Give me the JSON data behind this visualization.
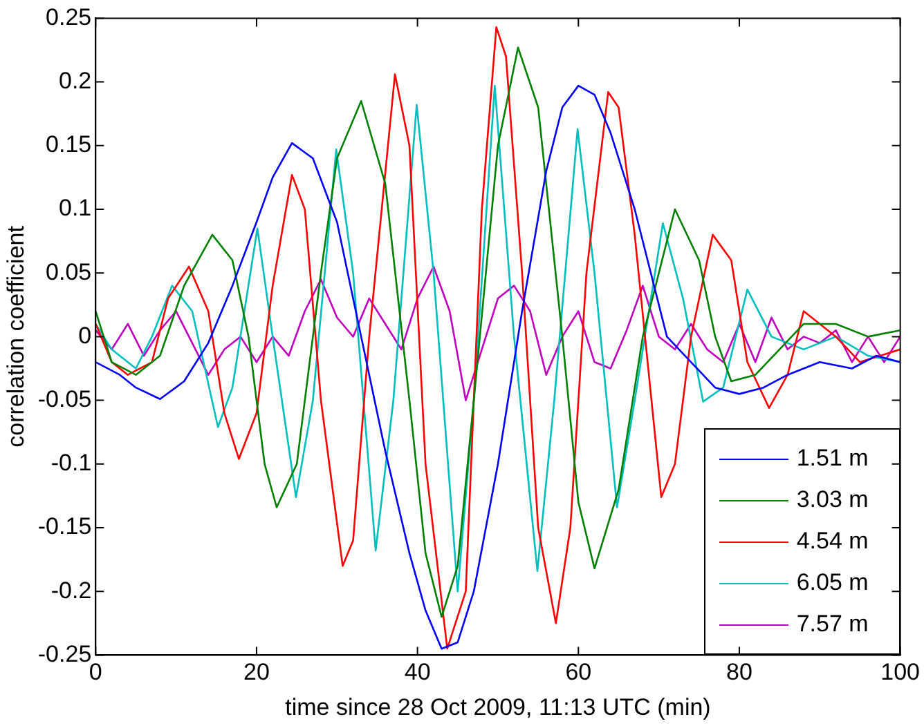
{
  "chart_data": {
    "type": "line",
    "xlabel": "time since 28 Oct 2009, 11:13 UTC (min)",
    "ylabel": "correlation coefficient",
    "xlim": [
      0,
      100
    ],
    "xticks": [
      0,
      20,
      40,
      60,
      80,
      100
    ],
    "ylim": [
      -0.25,
      0.25
    ],
    "yticks": [
      -0.25,
      -0.2,
      -0.15,
      -0.1,
      -0.05,
      0,
      0.05,
      0.1,
      0.15,
      0.2,
      0.25
    ],
    "grid": false,
    "legend": "bottom right",
    "marker": "none",
    "line_style": "solid",
    "series": [
      {
        "name": "1.51 m",
        "color": "#0000ff",
        "x": [
          0,
          3,
          5,
          8,
          11,
          14,
          17,
          20,
          22,
          24.4,
          27,
          30,
          33,
          36,
          39,
          41,
          43,
          45,
          47,
          50,
          53,
          56,
          58,
          60,
          62,
          64,
          67,
          71,
          74,
          77,
          80,
          83,
          86,
          90,
          94,
          97,
          100
        ],
        "values": [
          -0.02,
          -0.03,
          -0.04,
          -0.049,
          -0.035,
          -0.005,
          0.04,
          0.09,
          0.125,
          0.152,
          0.14,
          0.09,
          0.0,
          -0.09,
          -0.17,
          -0.215,
          -0.245,
          -0.24,
          -0.2,
          -0.1,
          0.02,
          0.13,
          0.18,
          0.197,
          0.19,
          0.16,
          0.1,
          0.0,
          -0.02,
          -0.04,
          -0.045,
          -0.04,
          -0.03,
          -0.02,
          -0.025,
          -0.015,
          -0.02
        ]
      },
      {
        "name": "3.03 m",
        "color": "#008000",
        "x": [
          0,
          2,
          5,
          8,
          11,
          14.5,
          17,
          19,
          21,
          22.5,
          25,
          28,
          30,
          33,
          36,
          39,
          41,
          43,
          45,
          47,
          50,
          52.5,
          55,
          58,
          60,
          62,
          65,
          68,
          72,
          75,
          77,
          79,
          82,
          85,
          88,
          92,
          96,
          100
        ],
        "values": [
          0.02,
          -0.02,
          -0.03,
          -0.015,
          0.04,
          0.08,
          0.06,
          0.0,
          -0.1,
          -0.134,
          -0.1,
          0.05,
          0.14,
          0.185,
          0.12,
          -0.05,
          -0.17,
          -0.22,
          -0.18,
          -0.05,
          0.15,
          0.227,
          0.18,
          0.0,
          -0.13,
          -0.182,
          -0.12,
          0.0,
          0.1,
          0.06,
          0.0,
          -0.035,
          -0.03,
          -0.01,
          0.01,
          0.01,
          0.0,
          0.005
        ]
      },
      {
        "name": "4.54 m",
        "color": "#ff0000",
        "x": [
          0,
          2,
          4,
          7,
          9,
          11.6,
          14,
          16,
          17.8,
          20,
          22,
          24.4,
          26,
          28,
          30.7,
          32,
          34,
          37.2,
          39,
          41,
          43.7,
          46,
          48,
          49.8,
          51,
          53,
          55,
          57.2,
          59,
          61,
          63.7,
          65,
          67,
          70.3,
          72,
          74,
          76.7,
          79,
          81,
          83.7,
          86,
          88,
          92,
          95,
          100
        ],
        "values": [
          0.01,
          -0.02,
          -0.03,
          -0.02,
          0.03,
          0.055,
          0.02,
          -0.06,
          -0.096,
          -0.06,
          0.04,
          0.127,
          0.1,
          -0.05,
          -0.18,
          -0.16,
          0.0,
          0.206,
          0.15,
          -0.1,
          -0.245,
          -0.2,
          0.1,
          0.243,
          0.22,
          0.05,
          -0.15,
          -0.225,
          -0.15,
          0.05,
          0.192,
          0.18,
          0.08,
          -0.126,
          -0.1,
          0.0,
          0.08,
          0.06,
          -0.02,
          -0.056,
          -0.03,
          0.02,
          0.0,
          -0.02,
          -0.01
        ]
      },
      {
        "name": "6.05 m",
        "color": "#00bfbf",
        "x": [
          0,
          2,
          5,
          7,
          9.5,
          12,
          15.2,
          17,
          20.1,
          22,
          24.9,
          27,
          29.9,
          32,
          34.8,
          37,
          39.9,
          42,
          45,
          47,
          49.6,
          52,
          54.9,
          57,
          59.9,
          62,
          64.8,
          67,
          70.5,
          73,
          75.5,
          78,
          81,
          84,
          88,
          92,
          96,
          100
        ],
        "values": [
          0.01,
          -0.01,
          -0.025,
          0.0,
          0.04,
          0.02,
          -0.071,
          -0.04,
          0.085,
          0.0,
          -0.126,
          -0.05,
          0.147,
          0.05,
          -0.168,
          -0.05,
          0.182,
          0.05,
          -0.2,
          -0.05,
          0.197,
          0.0,
          -0.184,
          -0.05,
          0.163,
          0.05,
          -0.134,
          -0.05,
          0.089,
          0.03,
          -0.051,
          -0.04,
          0.037,
          0.0,
          -0.01,
          0.0,
          -0.015,
          -0.02
        ]
      },
      {
        "name": "7.57 m",
        "color": "#bf00bf",
        "x": [
          0,
          2,
          4,
          6,
          8,
          10,
          12,
          14,
          16,
          18,
          20,
          22,
          24,
          26,
          28,
          30,
          32,
          34,
          36,
          38,
          40,
          42,
          44,
          46,
          48,
          50,
          52,
          54,
          56,
          58,
          60,
          62,
          64,
          66,
          68,
          70,
          72,
          74,
          76,
          78,
          80,
          82,
          84,
          86,
          88,
          90,
          92,
          94,
          96,
          98,
          100
        ],
        "values": [
          0.005,
          -0.01,
          0.01,
          -0.015,
          0.005,
          0.02,
          -0.005,
          -0.03,
          -0.01,
          0.0,
          -0.02,
          0.0,
          -0.015,
          0.02,
          0.045,
          0.015,
          0.0,
          0.03,
          0.01,
          -0.01,
          0.03,
          0.055,
          0.02,
          -0.05,
          -0.01,
          0.03,
          0.04,
          0.02,
          -0.03,
          0.0,
          0.02,
          -0.02,
          -0.025,
          0.005,
          0.04,
          0.0,
          -0.01,
          0.01,
          -0.01,
          -0.02,
          0.01,
          -0.02,
          0.015,
          -0.01,
          0.0,
          -0.005,
          0.005,
          -0.02,
          0.0,
          -0.02,
          0.0
        ]
      }
    ]
  }
}
